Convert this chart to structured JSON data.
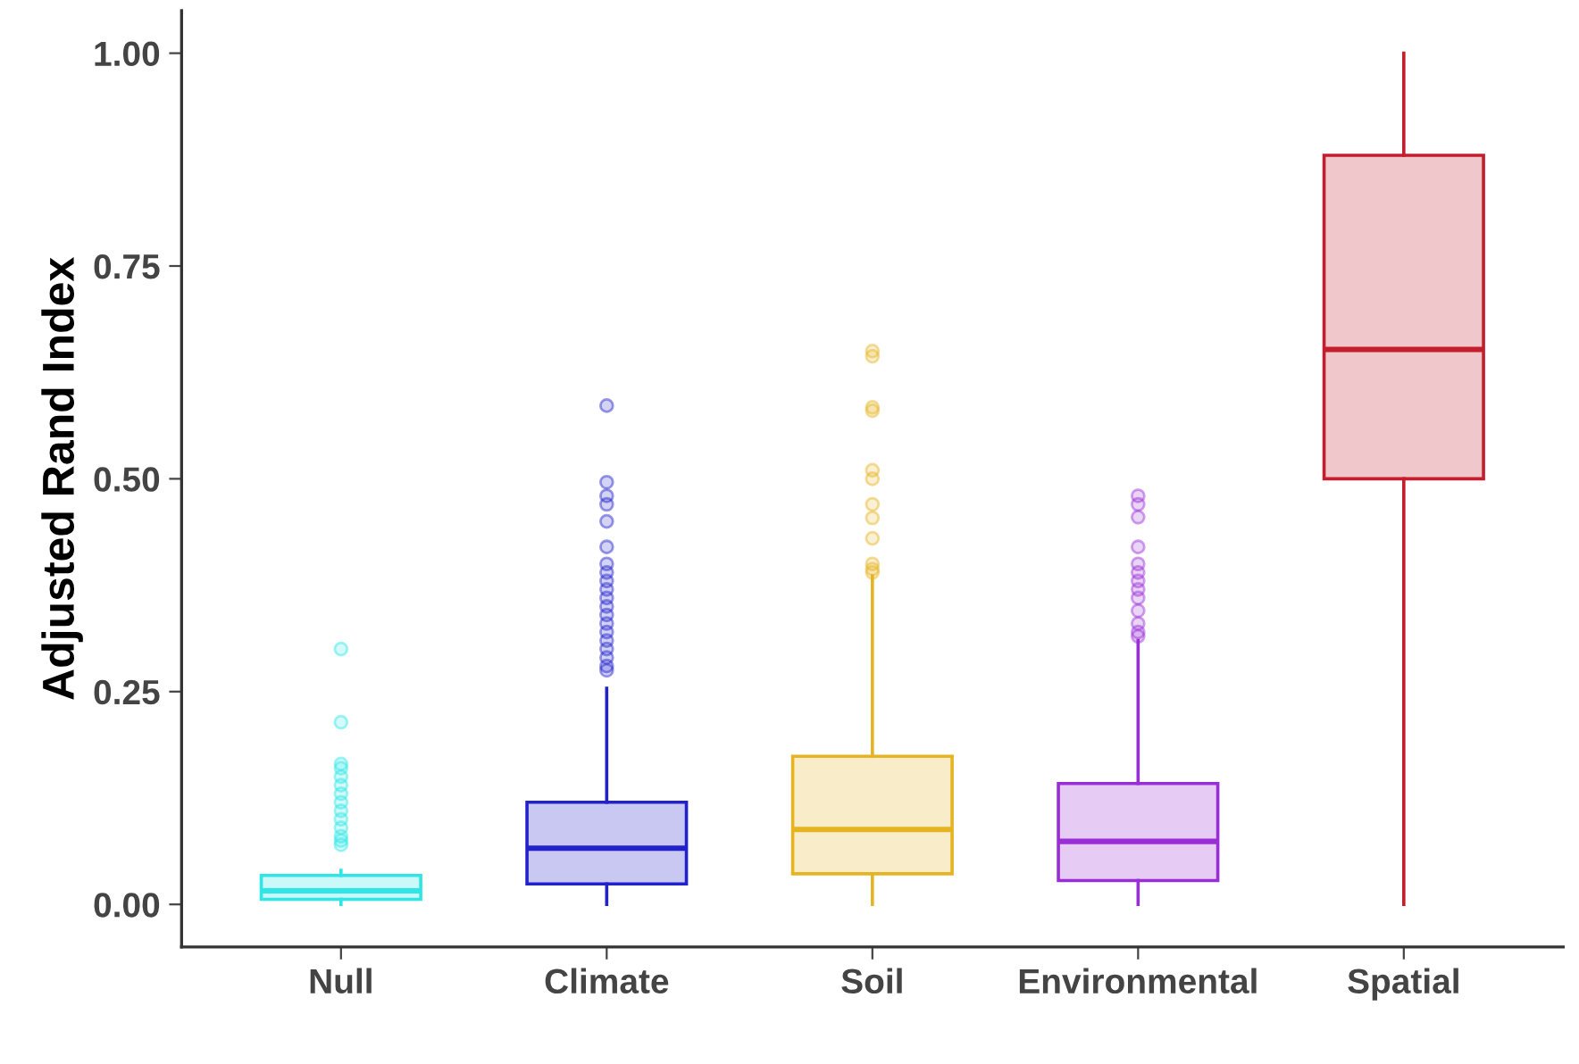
{
  "chart_data": {
    "type": "box",
    "ylabel": "Adjusted Rand Index",
    "categories": [
      "Null",
      "Climate",
      "Soil",
      "Environmental",
      "Spatial"
    ],
    "colors": [
      "#2ee6e6",
      "#2222cc",
      "#e6b422",
      "#9a2ed6",
      "#c41e2e"
    ],
    "boxes": [
      {
        "low": 0,
        "q1": 0.006,
        "median": 0.016,
        "q3": 0.034,
        "high": 0.04,
        "outliers": [
          0.07,
          0.075,
          0.08,
          0.09,
          0.1,
          0.11,
          0.12,
          0.13,
          0.14,
          0.15,
          0.16,
          0.165,
          0.214,
          0.3
        ]
      },
      {
        "low": 0,
        "q1": 0.024,
        "median": 0.066,
        "q3": 0.12,
        "high": 0.254,
        "outliers": [
          0.275,
          0.28,
          0.29,
          0.3,
          0.31,
          0.32,
          0.33,
          0.34,
          0.35,
          0.36,
          0.37,
          0.38,
          0.39,
          0.4,
          0.42,
          0.45,
          0.47,
          0.48,
          0.496,
          0.586
        ]
      },
      {
        "low": 0,
        "q1": 0.036,
        "median": 0.088,
        "q3": 0.174,
        "high": 0.386,
        "outliers": [
          0.39,
          0.394,
          0.4,
          0.43,
          0.454,
          0.47,
          0.5,
          0.51,
          0.58,
          0.584,
          0.644,
          0.65
        ]
      },
      {
        "low": 0,
        "q1": 0.028,
        "median": 0.074,
        "q3": 0.142,
        "high": 0.31,
        "outliers": [
          0.315,
          0.32,
          0.33,
          0.345,
          0.36,
          0.37,
          0.38,
          0.39,
          0.4,
          0.42,
          0.455,
          0.47,
          0.48
        ]
      },
      {
        "low": 0,
        "q1": 0.5,
        "median": 0.652,
        "q3": 0.88,
        "high": 1.0
      }
    ],
    "ylim": [
      -0.05,
      1.05
    ],
    "yticks": [
      {
        "value": 0,
        "label": "0.00"
      },
      {
        "value": 0.25,
        "label": "0.25"
      },
      {
        "value": 0.5,
        "label": "0.50"
      },
      {
        "value": 0.75,
        "label": "0.75"
      },
      {
        "value": 1,
        "label": "1.00"
      }
    ],
    "grid": false
  }
}
